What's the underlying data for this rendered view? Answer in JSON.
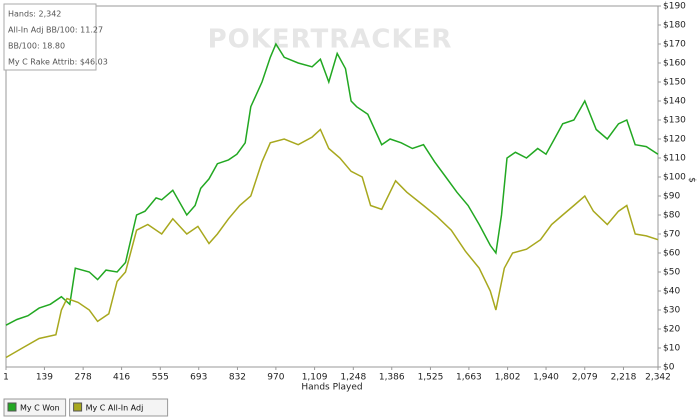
{
  "chart_data": {
    "type": "line",
    "watermark": "POKERTRACKER",
    "info": [
      "Hands: 2,342",
      "All-In Adj BB/100: 11.27",
      "BB/100: 18.80",
      "My C Rake Attrib: $46.03"
    ],
    "x_label": "Hands Played",
    "y_label": "$",
    "xlim": [
      1,
      2342
    ],
    "ylim": [
      0,
      190
    ],
    "xticks": [
      1,
      139,
      278,
      416,
      555,
      693,
      832,
      970,
      {
        "value": 1109,
        "label": "1,109"
      },
      {
        "value": 1248,
        "label": "1,248"
      },
      {
        "value": 1386,
        "label": "1,386"
      },
      {
        "value": 1525,
        "label": "1,525"
      },
      {
        "value": 1663,
        "label": "1,663"
      },
      {
        "value": 1802,
        "label": "1,802"
      },
      {
        "value": 1940,
        "label": "1,940"
      },
      {
        "value": 2079,
        "label": "2,079"
      },
      {
        "value": 2218,
        "label": "2,218"
      },
      {
        "value": 2342,
        "label": "2,342"
      }
    ],
    "yticks": [
      {
        "value": 0,
        "label": "$0"
      },
      {
        "value": 10,
        "label": "$10"
      },
      {
        "value": 20,
        "label": "$20"
      },
      {
        "value": 30,
        "label": "$30"
      },
      {
        "value": 40,
        "label": "$40"
      },
      {
        "value": 50,
        "label": "$50"
      },
      {
        "value": 60,
        "label": "$60"
      },
      {
        "value": 70,
        "label": "$70"
      },
      {
        "value": 80,
        "label": "$80"
      },
      {
        "value": 90,
        "label": "$90"
      },
      {
        "value": 100,
        "label": "$100"
      },
      {
        "value": 110,
        "label": "$110"
      },
      {
        "value": 120,
        "label": "$120"
      },
      {
        "value": 130,
        "label": "$130"
      },
      {
        "value": 140,
        "label": "$140"
      },
      {
        "value": 150,
        "label": "$150"
      },
      {
        "value": 160,
        "label": "$160"
      },
      {
        "value": 170,
        "label": "$170"
      },
      {
        "value": 180,
        "label": "$180"
      },
      {
        "value": 190,
        "label": "$190"
      }
    ],
    "series": [
      {
        "name": "My C Won",
        "color": "#22a822",
        "x": [
          1,
          40,
          80,
          120,
          160,
          200,
          230,
          250,
          300,
          330,
          360,
          400,
          430,
          470,
          500,
          540,
          560,
          600,
          650,
          680,
          700,
          730,
          760,
          800,
          830,
          860,
          880,
          920,
          950,
          970,
          1000,
          1050,
          1100,
          1130,
          1160,
          1190,
          1220,
          1240,
          1260,
          1300,
          1350,
          1380,
          1420,
          1460,
          1500,
          1540,
          1580,
          1620,
          1660,
          1700,
          1740,
          1760,
          1780,
          1800,
          1830,
          1870,
          1910,
          1940,
          1970,
          2000,
          2040,
          2079,
          2120,
          2160,
          2200,
          2230,
          2260,
          2300,
          2342
        ],
        "values": [
          22,
          25,
          27,
          31,
          33,
          37,
          33,
          52,
          50,
          46,
          51,
          50,
          55,
          80,
          82,
          89,
          88,
          93,
          80,
          85,
          94,
          99,
          107,
          109,
          112,
          118,
          137,
          150,
          163,
          170,
          163,
          160,
          158,
          162,
          150,
          165,
          157,
          140,
          137,
          133,
          117,
          120,
          118,
          115,
          117,
          108,
          100,
          92,
          85,
          75,
          64,
          60,
          80,
          110,
          113,
          110,
          115,
          112,
          120,
          128,
          130,
          140,
          125,
          120,
          128,
          130,
          117,
          116,
          112
        ]
      },
      {
        "name": "My C All-In Adj",
        "color": "#a8a81e",
        "x": [
          1,
          60,
          120,
          180,
          200,
          220,
          260,
          300,
          330,
          370,
          400,
          430,
          470,
          510,
          560,
          600,
          650,
          690,
          730,
          760,
          800,
          840,
          880,
          920,
          950,
          1000,
          1050,
          1100,
          1130,
          1160,
          1200,
          1240,
          1280,
          1310,
          1350,
          1400,
          1440,
          1500,
          1550,
          1600,
          1650,
          1700,
          1740,
          1760,
          1790,
          1820,
          1870,
          1920,
          1960,
          2000,
          2040,
          2079,
          2110,
          2160,
          2200,
          2230,
          2260,
          2300,
          2342
        ],
        "values": [
          5,
          10,
          15,
          17,
          30,
          36,
          34,
          30,
          24,
          28,
          45,
          50,
          72,
          75,
          70,
          78,
          70,
          74,
          65,
          70,
          78,
          85,
          90,
          108,
          118,
          120,
          117,
          121,
          125,
          115,
          110,
          103,
          100,
          85,
          83,
          98,
          92,
          85,
          79,
          72,
          61,
          52,
          40,
          30,
          52,
          60,
          62,
          67,
          75,
          80,
          85,
          90,
          82,
          75,
          82,
          85,
          70,
          69,
          67
        ]
      }
    ]
  }
}
